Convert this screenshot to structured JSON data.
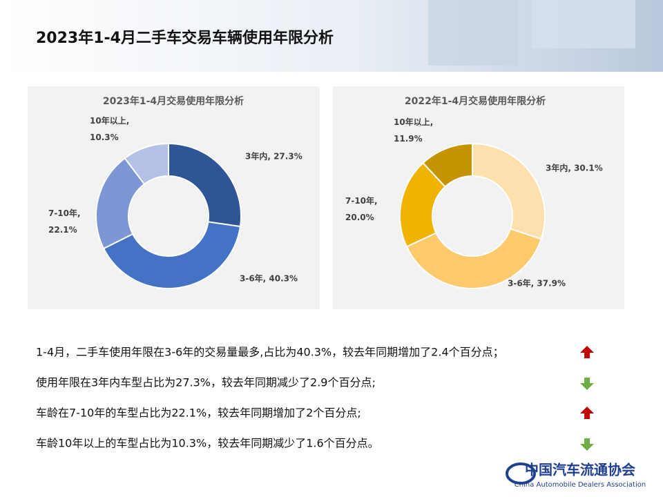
{
  "header": {
    "title": "2023年1-4月二手车交易车辆使用年限分析"
  },
  "chart_data": [
    {
      "type": "pie",
      "donut": true,
      "title": "2023年1-4月交易使用年限分析",
      "categories": [
        "3年内",
        "3-6年",
        "7-10年",
        "10年以上"
      ],
      "values": [
        27.3,
        40.3,
        22.1,
        10.3
      ],
      "value_labels": [
        "3年内, 27.3%",
        "3-6年, 40.3%",
        "7-10年, 22.1%",
        "10年以上, 10.3%"
      ],
      "colors": [
        "#2f5597",
        "#4472c4",
        "#7f96d4",
        "#b4c1e6"
      ]
    },
    {
      "type": "pie",
      "donut": true,
      "title": "2022年1-4月交易使用年限分析",
      "categories": [
        "3年内",
        "3-6年",
        "7-10年",
        "10年以上"
      ],
      "values": [
        30.1,
        37.9,
        20.0,
        11.9
      ],
      "value_labels": [
        "3年内, 30.1%",
        "3-6年, 37.9%",
        "7-10年, 20.0%",
        "10年以上, 11.9%"
      ],
      "colors": [
        "#fde0ae",
        "#ffca6c",
        "#efb300",
        "#c59400"
      ]
    }
  ],
  "notes": [
    {
      "text": "1-4月，二手车使用年限在3-6年的交易量最多,占比为40.3%，较去年同期增加了2.4个百分点；",
      "trend": "up"
    },
    {
      "text": "使用年限在3年内车型占比为27.3%，较去年同期减少了2.9个百分点;",
      "trend": "down"
    },
    {
      "text": "车龄在7-10年的车型占比为22.1%，较去年同期增加了2个百分点;",
      "trend": "up"
    },
    {
      "text": "车龄10年以上的车型占比为10.3%，较去年同期减少了1.6个百分点。",
      "trend": "down"
    }
  ],
  "logo": {
    "name": "中国汽车流通协会",
    "name_en": "China Automobile Dealers Association"
  }
}
